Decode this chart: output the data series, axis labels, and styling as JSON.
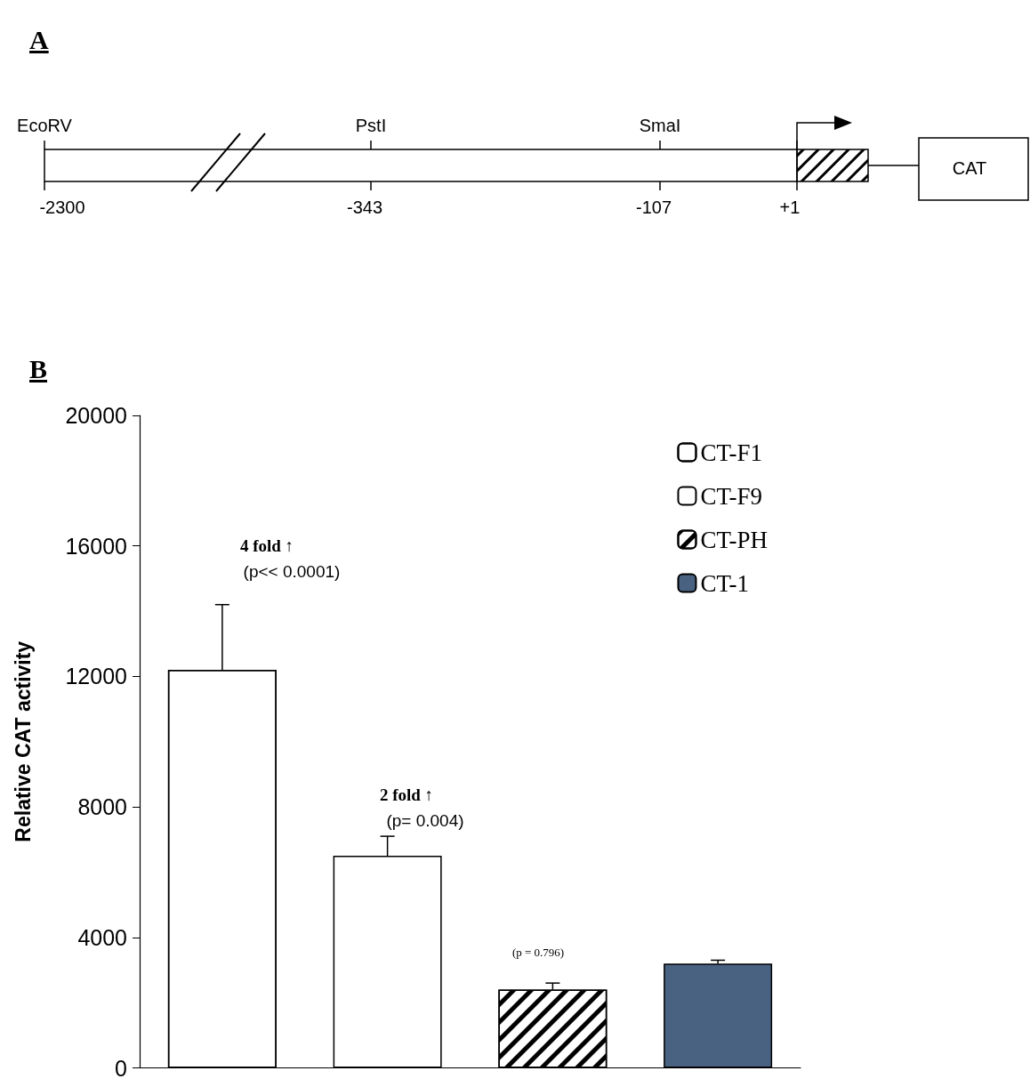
{
  "chart_data": [
    {
      "type": "other",
      "title": "A",
      "annotations": [
        "EcoRV",
        "PstI",
        "SmaI",
        "-2300",
        "-343",
        "-107",
        "+1",
        "CAT"
      ]
    },
    {
      "type": "bar",
      "title": "B",
      "ylabel": "Relative CAT activity",
      "categories": [
        null,
        null,
        null,
        null
      ],
      "series": [
        {
          "name": "CT-F1",
          "color": "#ffffff",
          "values": [
            12200,
            null,
            null,
            null
          ],
          "errors": [
            [
              12200,
              14200
            ],
            null,
            null,
            null
          ]
        },
        {
          "name": "CT-F9",
          "color": "#ffffff",
          "values": [
            null,
            6500,
            null,
            null
          ],
          "errors": [
            null,
            [
              6500,
              7100
            ],
            null,
            null
          ]
        },
        {
          "name": "CT-PH",
          "color": "#ffffff",
          "values": [
            null,
            null,
            2400,
            null
          ],
          "errors": [
            null,
            null,
            [
              2400,
              2600
            ],
            null
          ]
        },
        {
          "name": "CT-1",
          "color": "#4a6282",
          "values": [
            null,
            null,
            null,
            3200
          ],
          "errors": [
            null,
            null,
            null,
            [
              3200,
              3300
            ]
          ]
        }
      ],
      "ylim": [
        0,
        20000
      ],
      "yticks": [
        0,
        4000,
        8000,
        12000,
        16000,
        20000
      ],
      "grid": false,
      "legend": "top right",
      "annotations": [
        "4 fold ↑",
        "(p<< 0.0001)",
        "2 fold ↑",
        "(p= 0.004)",
        "(p = 0.796)"
      ]
    }
  ]
}
